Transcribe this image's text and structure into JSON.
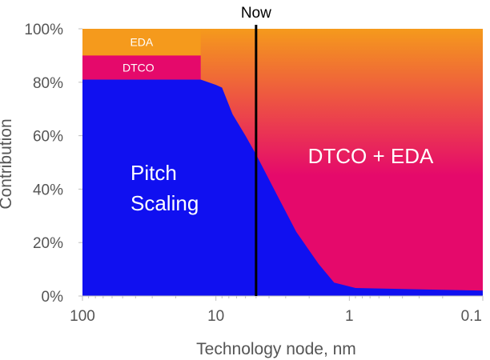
{
  "chart_data": {
    "type": "area",
    "xlabel": "Technology node, nm",
    "ylabel": "Contribution",
    "x_scale": "log",
    "x_reversed": true,
    "xlim": [
      100,
      0.1
    ],
    "ylim": [
      0,
      100
    ],
    "x_ticks": [
      {
        "value": 100,
        "label": "100"
      },
      {
        "value": 10,
        "label": "10"
      },
      {
        "value": 1,
        "label": "1"
      },
      {
        "value": 0.1,
        "label": "0.1"
      }
    ],
    "y_ticks": [
      {
        "value": 0,
        "label": "0%"
      },
      {
        "value": 20,
        "label": "20%"
      },
      {
        "value": 40,
        "label": "40%"
      },
      {
        "value": 60,
        "label": "60%"
      },
      {
        "value": 80,
        "label": "80%"
      },
      {
        "value": 100,
        "label": "100%"
      }
    ],
    "series": [
      {
        "name": "Pitch Scaling",
        "color": "#1010f0",
        "x": [
          100,
          13,
          10,
          9,
          7.5,
          6,
          5,
          3.5,
          2.5,
          1.7,
          1.3,
          0.9,
          0.1
        ],
        "y": [
          81,
          81,
          79,
          78,
          68,
          60,
          53,
          38,
          24,
          12,
          5,
          3,
          2
        ]
      },
      {
        "name": "DTCO",
        "color": "#e5096b",
        "x": [
          100,
          13
        ],
        "y_range": [
          81,
          90
        ]
      },
      {
        "name": "EDA",
        "color": "#f59a1c",
        "x": [
          100,
          13
        ],
        "y_range": [
          90,
          100
        ]
      }
    ],
    "annotations": [
      {
        "text": "Now",
        "x": 5
      },
      {
        "text": "EDA"
      },
      {
        "text": "DTCO"
      },
      {
        "text": "DTCO + EDA"
      },
      {
        "text": "Pitch Scaling"
      }
    ],
    "colors": {
      "background_top": "#f59a1c",
      "background_bottom": "#e5096b",
      "now_line": "#000000"
    }
  }
}
